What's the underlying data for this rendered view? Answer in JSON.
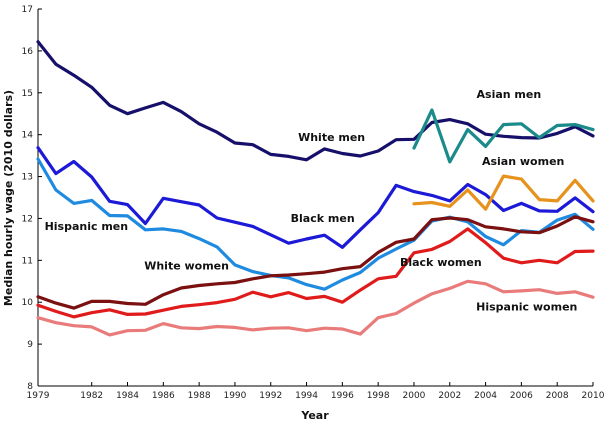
{
  "chart_data": {
    "type": "line",
    "title": "",
    "xlabel": "Year",
    "ylabel": "Median hourly wage (2010 dollars)",
    "xlim": [
      1979,
      2010
    ],
    "ylim": [
      8,
      17
    ],
    "x_ticks": [
      1979,
      1982,
      1984,
      1986,
      1988,
      1990,
      1992,
      1994,
      1996,
      1998,
      2000,
      2002,
      2004,
      2006,
      2008,
      2010
    ],
    "y_ticks": [
      8,
      9,
      10,
      11,
      12,
      13,
      14,
      15,
      16,
      17
    ],
    "grid": false,
    "legend": "direct labels",
    "series": [
      {
        "name": "White men",
        "color": "#17106b",
        "x": [
          1979,
          1980,
          1981,
          1982,
          1983,
          1984,
          1985,
          1986,
          1987,
          1988,
          1989,
          1990,
          1991,
          1992,
          1993,
          1994,
          1995,
          1996,
          1997,
          1998,
          1999,
          2000,
          2001,
          2002,
          2003,
          2004,
          2005,
          2006,
          2007,
          2008,
          2009,
          2010
        ],
        "y": [
          16.22,
          15.68,
          15.42,
          15.13,
          14.7,
          14.5,
          14.64,
          14.77,
          14.55,
          14.26,
          14.06,
          13.8,
          13.76,
          13.53,
          13.48,
          13.4,
          13.66,
          13.55,
          13.49,
          13.61,
          13.88,
          13.89,
          14.29,
          14.36,
          14.26,
          14.01,
          13.96,
          13.93,
          13.92,
          14.03,
          14.19,
          13.97
        ]
      },
      {
        "name": "Asian men",
        "color": "#1b8a8a",
        "x": [
          2000,
          2001,
          2002,
          2003,
          2004,
          2005,
          2006,
          2007,
          2008,
          2009,
          2010
        ],
        "y": [
          13.68,
          14.59,
          13.35,
          14.12,
          13.72,
          14.24,
          14.26,
          13.93,
          14.22,
          14.24,
          14.12
        ]
      },
      {
        "name": "Black men",
        "color": "#1c1ad6",
        "x": [
          1979,
          1980,
          1981,
          1982,
          1983,
          1984,
          1985,
          1986,
          1987,
          1988,
          1989,
          1990,
          1991,
          1992,
          1993,
          1994,
          1995,
          1996,
          1997,
          1998,
          1999,
          2000,
          2001,
          2002,
          2003,
          2004,
          2005,
          2006,
          2007,
          2008,
          2009,
          2010
        ],
        "y": [
          13.69,
          13.07,
          13.36,
          12.99,
          12.41,
          12.33,
          11.88,
          12.48,
          12.4,
          12.32,
          12.01,
          11.91,
          11.81,
          11.61,
          11.41,
          11.51,
          11.6,
          11.31,
          11.73,
          12.14,
          12.79,
          12.64,
          12.55,
          12.42,
          12.81,
          12.57,
          12.19,
          12.36,
          12.18,
          12.17,
          12.49,
          12.16
        ]
      },
      {
        "name": "Asian women",
        "color": "#e6921c",
        "x": [
          2000,
          2001,
          2002,
          2003,
          2004,
          2005,
          2006,
          2007,
          2008,
          2009,
          2010
        ],
        "y": [
          12.35,
          12.38,
          12.29,
          12.68,
          12.22,
          13.01,
          12.94,
          12.45,
          12.42,
          12.91,
          12.42
        ]
      },
      {
        "name": "Hispanic men",
        "color": "#1f8be0",
        "x": [
          1979,
          1980,
          1981,
          1982,
          1983,
          1984,
          1985,
          1986,
          1987,
          1988,
          1989,
          1990,
          1991,
          1992,
          1993,
          1994,
          1995,
          1996,
          1997,
          1998,
          1999,
          2000,
          2001,
          2002,
          2003,
          2004,
          2005,
          2006,
          2007,
          2008,
          2009,
          2010
        ],
        "y": [
          13.42,
          12.68,
          12.36,
          12.43,
          12.07,
          12.06,
          11.73,
          11.75,
          11.69,
          11.52,
          11.32,
          10.89,
          10.73,
          10.64,
          10.58,
          10.42,
          10.31,
          10.53,
          10.71,
          11.05,
          11.27,
          11.48,
          11.94,
          12.03,
          11.92,
          11.57,
          11.37,
          11.71,
          11.67,
          11.96,
          12.1,
          11.74
        ]
      },
      {
        "name": "White women",
        "color": "#7a1010",
        "x": [
          1979,
          1980,
          1981,
          1982,
          1983,
          1984,
          1985,
          1986,
          1987,
          1988,
          1989,
          1990,
          1991,
          1992,
          1993,
          1994,
          1995,
          1996,
          1997,
          1998,
          1999,
          2000,
          2001,
          2002,
          2003,
          2004,
          2005,
          2006,
          2007,
          2008,
          2009,
          2010
        ],
        "y": [
          10.13,
          9.98,
          9.86,
          10.02,
          10.02,
          9.97,
          9.95,
          10.18,
          10.34,
          10.4,
          10.44,
          10.47,
          10.56,
          10.63,
          10.65,
          10.68,
          10.72,
          10.8,
          10.85,
          11.19,
          11.43,
          11.51,
          11.97,
          12.01,
          11.97,
          11.8,
          11.75,
          11.68,
          11.66,
          11.82,
          12.04,
          11.92
        ]
      },
      {
        "name": "Black women",
        "color": "#e01b1b",
        "x": [
          1979,
          1980,
          1981,
          1982,
          1983,
          1984,
          1985,
          1986,
          1987,
          1988,
          1989,
          1990,
          1991,
          1992,
          1993,
          1994,
          1995,
          1996,
          1997,
          1998,
          1999,
          2000,
          2001,
          2002,
          2003,
          2004,
          2005,
          2006,
          2007,
          2008,
          2009,
          2010
        ],
        "y": [
          9.93,
          9.78,
          9.65,
          9.75,
          9.82,
          9.71,
          9.72,
          9.81,
          9.9,
          9.94,
          9.99,
          10.07,
          10.24,
          10.13,
          10.23,
          10.09,
          10.14,
          10.0,
          10.29,
          10.56,
          10.62,
          11.18,
          11.26,
          11.45,
          11.75,
          11.42,
          11.05,
          10.94,
          11.0,
          10.94,
          11.21,
          11.22
        ]
      },
      {
        "name": "Hispanic women",
        "color": "#ea7b7b",
        "x": [
          1979,
          1980,
          1981,
          1982,
          1983,
          1984,
          1985,
          1986,
          1987,
          1988,
          1989,
          1990,
          1991,
          1992,
          1993,
          1994,
          1995,
          1996,
          1997,
          1998,
          1999,
          2000,
          2001,
          2002,
          2003,
          2004,
          2005,
          2006,
          2007,
          2008,
          2009,
          2010
        ],
        "y": [
          9.63,
          9.51,
          9.44,
          9.41,
          9.22,
          9.32,
          9.33,
          9.49,
          9.39,
          9.37,
          9.42,
          9.4,
          9.34,
          9.38,
          9.39,
          9.32,
          9.38,
          9.36,
          9.24,
          9.63,
          9.73,
          9.98,
          10.2,
          10.33,
          10.5,
          10.44,
          10.25,
          10.27,
          10.3,
          10.21,
          10.25,
          10.12
        ]
      }
    ],
    "series_labels": [
      {
        "series": "White men",
        "x": 1995.4,
        "y": 13.85
      },
      {
        "series": "Asian men",
        "x": 2005.3,
        "y": 14.88
      },
      {
        "series": "Black men",
        "x": 1994.9,
        "y": 11.92
      },
      {
        "series": "Asian women",
        "x": 2006.1,
        "y": 13.27
      },
      {
        "series": "Hispanic men",
        "x": 1981.7,
        "y": 11.72
      },
      {
        "series": "White women",
        "x": 1987.3,
        "y": 10.78
      },
      {
        "series": "Black women",
        "x": 2001.5,
        "y": 10.87
      },
      {
        "series": "Hispanic women",
        "x": 2006.3,
        "y": 9.8
      }
    ]
  }
}
